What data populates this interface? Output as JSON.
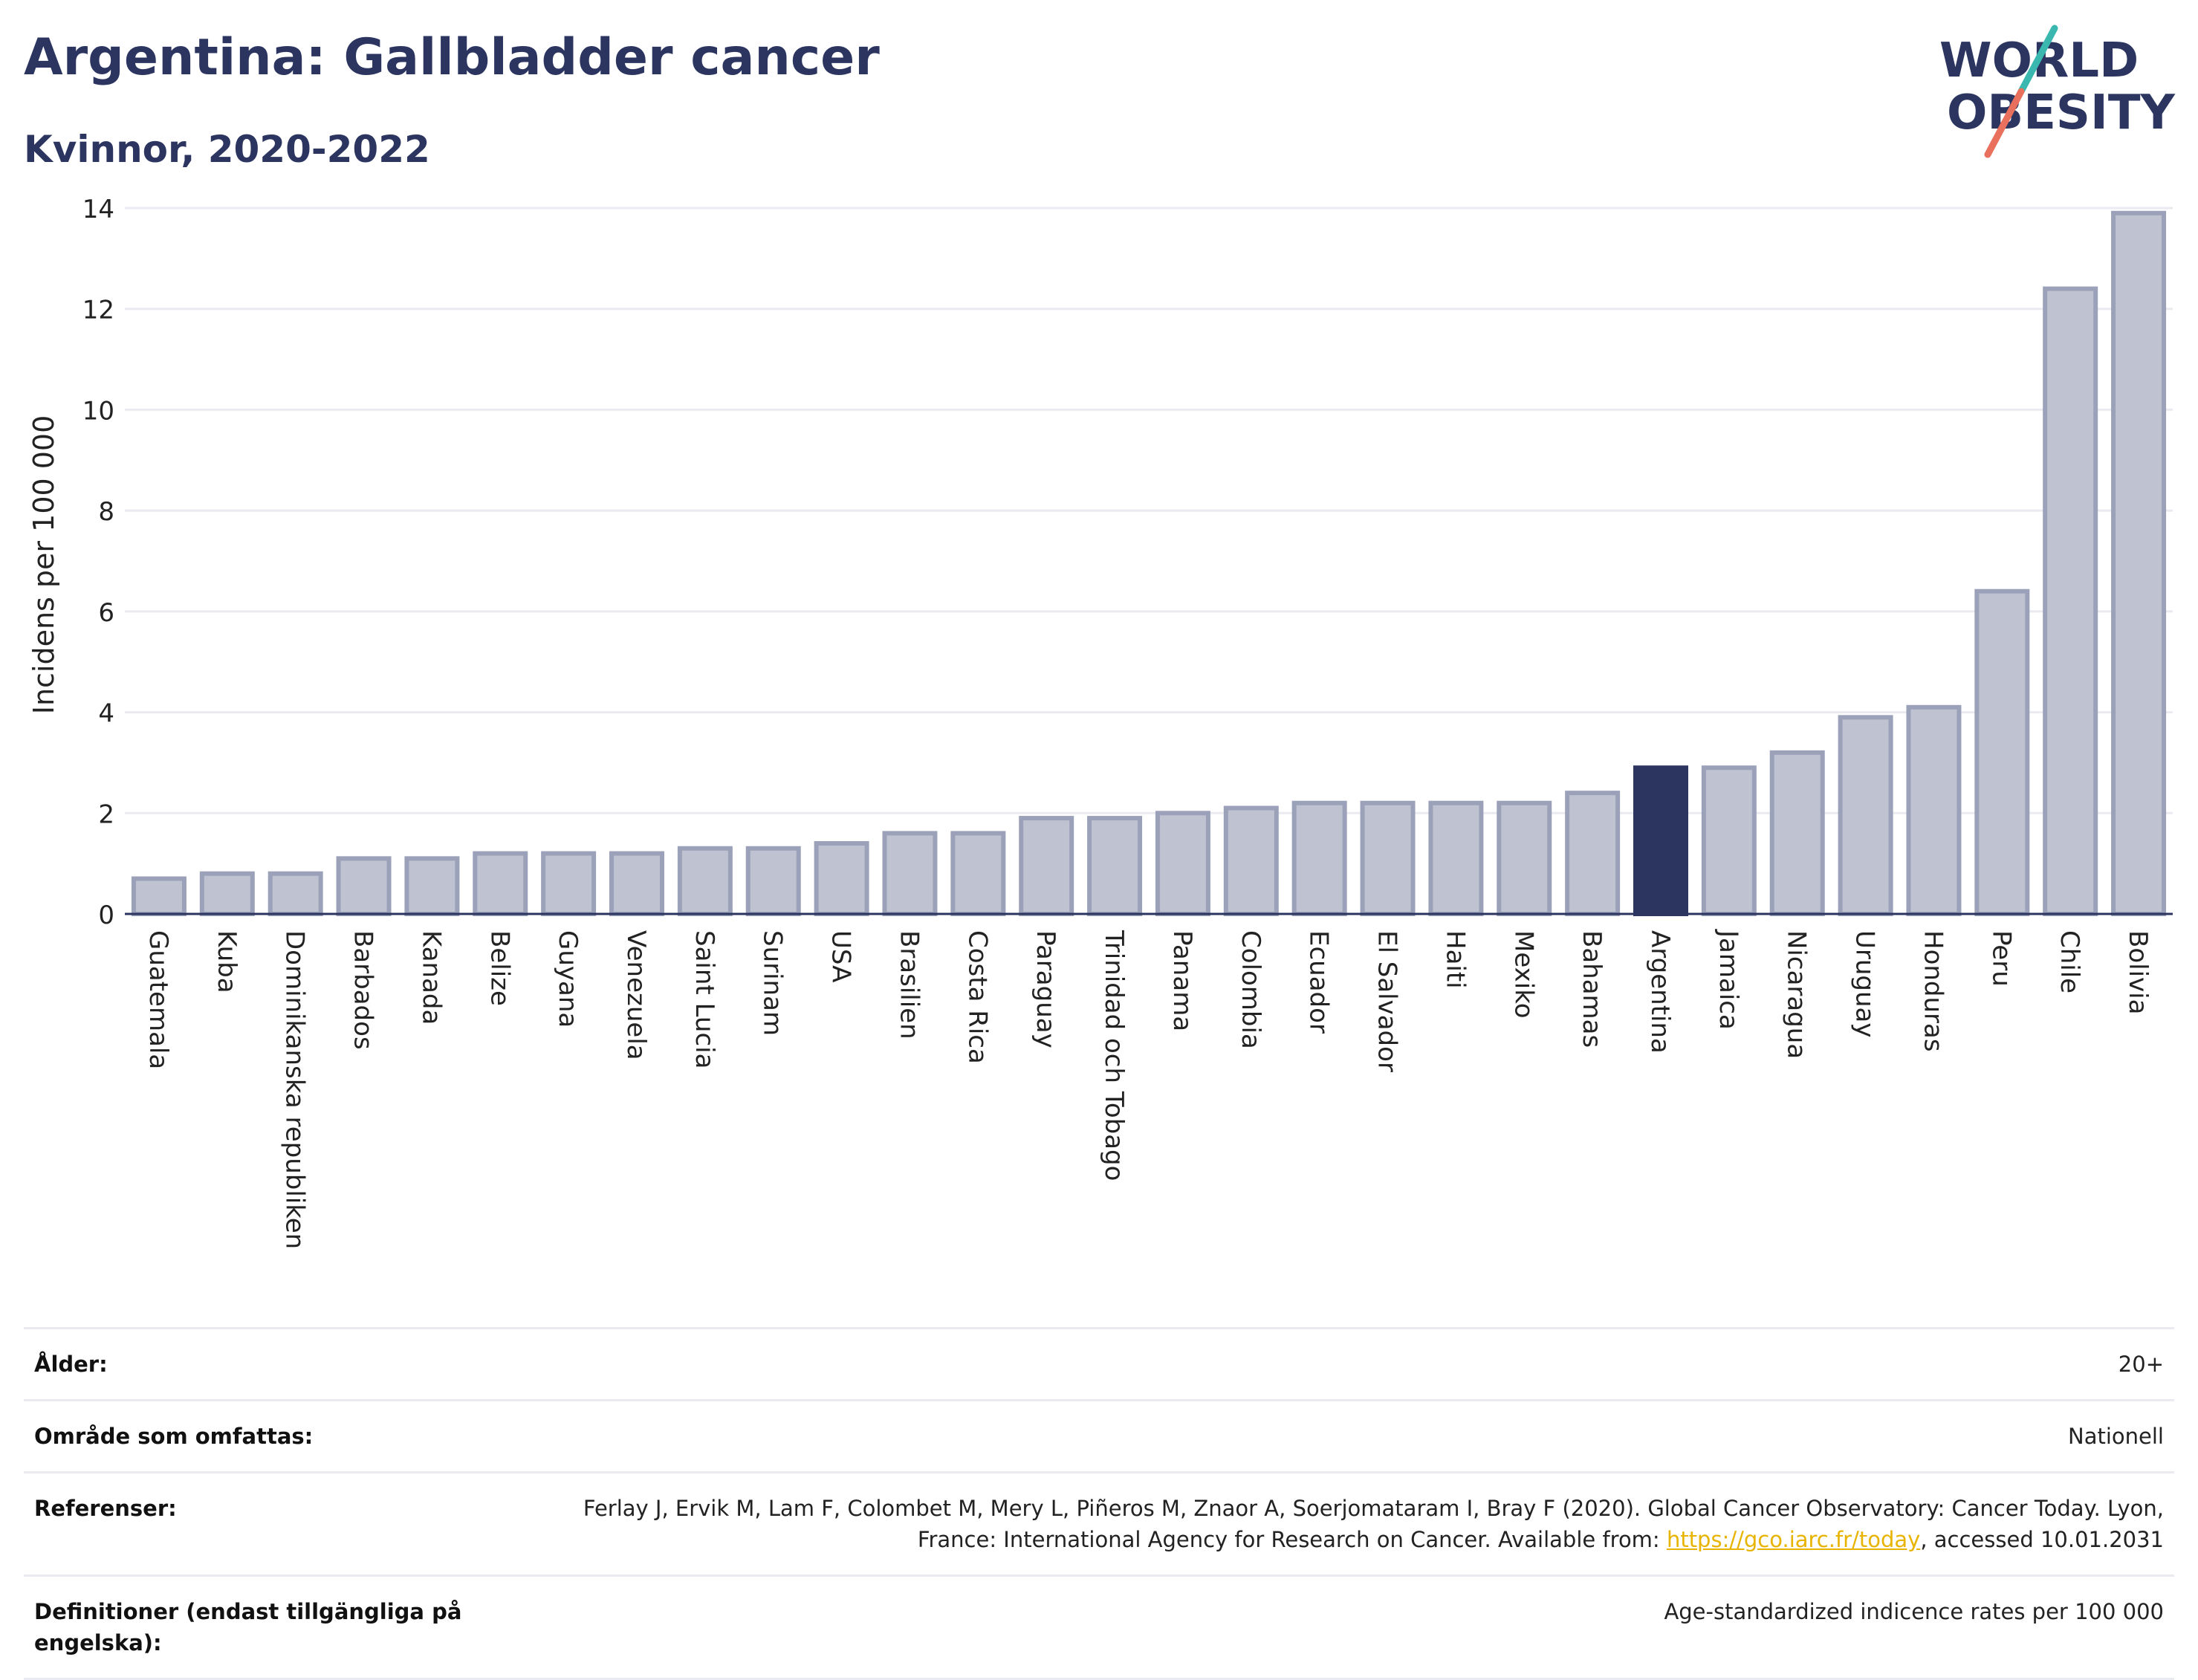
{
  "header": {
    "title": "Argentina: Gallbladder cancer",
    "subtitle": "Kvinnor, 2020-2022"
  },
  "logo": {
    "line1": "WORLD",
    "line2": "OBESITY",
    "slash_colors": [
      "#3ab8b0",
      "#e9705c"
    ]
  },
  "colors": {
    "bar": "#bfc3d1",
    "bar_edge": "#9ba1b8",
    "highlight": "#2b3560",
    "grid": "#e9ebf1",
    "axis": "#2b3560"
  },
  "chart_data": {
    "type": "bar",
    "title": "",
    "xlabel": "",
    "ylabel": "Incidens per 100 000",
    "ylim": [
      0,
      14
    ],
    "yticks": [
      0,
      2,
      4,
      6,
      8,
      10,
      12,
      14
    ],
    "grid": true,
    "highlight": "Argentina",
    "categories": [
      "Guatemala",
      "Kuba",
      "Dominikanska republiken",
      "Barbados",
      "Kanada",
      "Belize",
      "Guyana",
      "Venezuela",
      "Saint Lucia",
      "Surinam",
      "USA",
      "Brasilien",
      "Costa Rica",
      "Paraguay",
      "Trinidad och Tobago",
      "Panama",
      "Colombia",
      "Ecuador",
      "El Salvador",
      "Haiti",
      "Mexiko",
      "Bahamas",
      "Argentina",
      "Jamaica",
      "Nicaragua",
      "Uruguay",
      "Honduras",
      "Peru",
      "Chile",
      "Bolivia"
    ],
    "values": [
      0.7,
      0.8,
      0.8,
      1.1,
      1.1,
      1.2,
      1.2,
      1.2,
      1.3,
      1.3,
      1.4,
      1.6,
      1.6,
      1.9,
      1.9,
      2.0,
      2.1,
      2.2,
      2.2,
      2.2,
      2.2,
      2.4,
      2.9,
      2.9,
      3.2,
      3.9,
      4.1,
      6.4,
      12.4,
      13.9
    ]
  },
  "meta": [
    {
      "label": "Ålder:",
      "value": "20+"
    },
    {
      "label": "Område som omfattas:",
      "value": "Nationell"
    },
    {
      "label": "Referenser:",
      "value_before": "Ferlay J, Ervik M, Lam F, Colombet M, Mery L, Piñeros M, Znaor A, Soerjomataram I, Bray F (2020). Global Cancer Observatory: Cancer Today. Lyon, France: International Agency for Research on Cancer. Available from: ",
      "link": "https://gco.iarc.fr/today",
      "value_after": ", accessed 10.01.2031"
    },
    {
      "label": "Definitioner (endast tillgängliga på engelska):",
      "value": "Age-standardized indicence rates per 100 000"
    }
  ]
}
